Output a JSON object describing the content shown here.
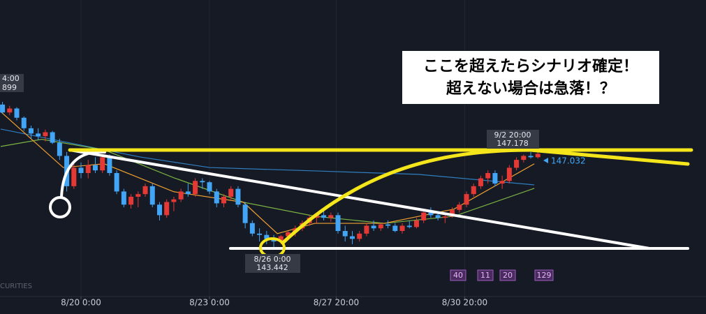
{
  "chart_data": {
    "type": "candlestick",
    "x": [
      -44,
      -40,
      -36,
      -32,
      -28,
      -24,
      -20,
      -16,
      -12,
      -8,
      -4,
      0,
      4,
      8,
      12,
      16,
      20,
      24,
      28,
      32,
      36,
      40,
      44,
      48,
      52,
      56,
      60,
      64,
      68,
      72,
      76,
      80,
      84,
      88,
      92,
      96,
      100,
      104,
      108,
      112,
      116,
      120,
      124,
      128,
      132,
      136,
      140,
      144,
      148,
      152,
      156,
      160,
      164,
      168,
      172,
      176,
      180,
      184,
      188,
      192,
      196,
      200,
      204,
      208,
      212,
      216,
      220,
      224,
      228,
      232,
      236,
      240,
      244,
      248,
      252,
      256
    ],
    "open": [
      148.9,
      148.6,
      148.75,
      148.4,
      148.0,
      147.8,
      147.7,
      147.85,
      147.45,
      146.95,
      145.8,
      146.5,
      146.3,
      146.6,
      146.4,
      146.9,
      146.3,
      145.6,
      145.1,
      145.4,
      145.5,
      145.8,
      145.1,
      144.7,
      145.2,
      145.3,
      145.6,
      145.5,
      146.0,
      145.95,
      145.6,
      145.15,
      145.4,
      145.7,
      145.1,
      144.4,
      144.0,
      143.95,
      143.8,
      143.7,
      143.9,
      144.05,
      144.2,
      144.4,
      144.6,
      144.7,
      144.6,
      144.7,
      144.1,
      143.9,
      143.8,
      144.0,
      144.3,
      144.2,
      144.35,
      144.3,
      144.1,
      144.3,
      144.25,
      144.5,
      144.8,
      144.7,
      144.6,
      144.65,
      144.9,
      145.1,
      145.5,
      145.8,
      146.1,
      146.3,
      145.9,
      146.0,
      146.5,
      146.8,
      146.95,
      146.9
    ],
    "high": [
      149.0,
      148.85,
      148.8,
      148.45,
      148.1,
      148.0,
      147.95,
      147.9,
      147.6,
      147.1,
      146.7,
      146.7,
      146.8,
      146.9,
      147.0,
      147.0,
      146.4,
      145.7,
      145.5,
      145.6,
      145.9,
      145.9,
      145.2,
      145.3,
      145.4,
      145.7,
      145.9,
      146.1,
      146.1,
      146.0,
      145.7,
      145.5,
      145.8,
      145.8,
      145.2,
      144.5,
      144.2,
      144.1,
      143.95,
      143.95,
      144.1,
      144.3,
      144.5,
      144.7,
      144.8,
      144.85,
      144.8,
      144.8,
      144.3,
      144.1,
      144.1,
      144.4,
      144.5,
      144.4,
      144.5,
      144.4,
      144.4,
      144.5,
      144.6,
      144.9,
      145.0,
      144.85,
      144.75,
      145.0,
      145.2,
      145.6,
      145.9,
      146.2,
      146.4,
      146.4,
      146.2,
      146.6,
      146.9,
      147.0,
      147.1,
      147.18
    ],
    "low": [
      148.55,
      148.5,
      148.3,
      147.9,
      147.6,
      147.55,
      147.5,
      147.4,
      146.8,
      145.6,
      145.7,
      146.1,
      146.1,
      146.3,
      146.3,
      146.2,
      145.5,
      145.0,
      144.95,
      145.0,
      145.4,
      145.0,
      144.5,
      144.6,
      144.85,
      145.2,
      145.4,
      145.4,
      145.7,
      145.5,
      145.0,
      145.0,
      145.3,
      145.0,
      144.2,
      143.9,
      143.7,
      143.6,
      143.44,
      143.6,
      143.8,
      143.9,
      144.1,
      144.3,
      144.4,
      144.5,
      144.45,
      144.0,
      143.7,
      143.6,
      143.7,
      143.9,
      144.1,
      144.1,
      144.2,
      144.05,
      144.0,
      144.2,
      144.2,
      144.4,
      144.6,
      144.5,
      144.4,
      144.6,
      144.8,
      145.0,
      145.4,
      145.7,
      145.9,
      145.8,
      145.7,
      145.9,
      146.4,
      146.7,
      146.85,
      146.85
    ],
    "close": [
      148.6,
      148.75,
      148.4,
      148.0,
      147.8,
      147.7,
      147.85,
      147.45,
      146.95,
      145.8,
      146.5,
      146.3,
      146.6,
      146.4,
      146.9,
      146.3,
      145.6,
      145.1,
      145.4,
      145.5,
      145.8,
      145.1,
      144.7,
      145.2,
      145.3,
      145.6,
      145.5,
      146.0,
      145.95,
      145.6,
      145.15,
      145.4,
      145.7,
      145.1,
      144.4,
      144.0,
      143.95,
      143.8,
      143.7,
      143.9,
      144.05,
      144.2,
      144.4,
      144.6,
      144.7,
      144.6,
      144.7,
      144.1,
      143.9,
      143.8,
      144.0,
      144.3,
      144.2,
      144.35,
      144.3,
      144.1,
      144.3,
      144.25,
      144.5,
      144.8,
      144.7,
      144.6,
      144.65,
      144.9,
      145.1,
      145.5,
      145.8,
      146.1,
      146.3,
      145.9,
      146.0,
      146.5,
      146.8,
      146.95,
      146.9,
      147.03
    ],
    "up_color": "#e53935",
    "down_color": "#42a5f5",
    "series": [
      {
        "color": "#2f7fc1",
        "x": [
          -45,
          -6,
          33,
          72,
          131,
          189,
          254
        ],
        "values": [
          147.97,
          147.44,
          146.91,
          146.51,
          146.38,
          146.25,
          145.85
        ]
      },
      {
        "color": "#7cb342",
        "x": [
          -45,
          -22,
          13,
          52,
          91,
          131,
          170,
          209,
          254
        ],
        "values": [
          147.31,
          147.58,
          147.18,
          146.12,
          145.19,
          144.66,
          144.39,
          144.66,
          145.72
        ]
      },
      {
        "color": "#f0a030",
        "x": [
          -45,
          -10,
          13,
          52,
          91,
          110,
          131,
          170,
          209,
          254
        ],
        "values": [
          148.63,
          146.51,
          146.65,
          145.59,
          145.19,
          144.0,
          144.39,
          144.39,
          144.93,
          146.65
        ]
      }
    ],
    "xlim": [
      -45.4,
      350.2
    ],
    "ylim": [
      141.61,
      152.87
    ],
    "xticks": [
      {
        "value": 0,
        "label": "8/20 0:00"
      },
      {
        "value": 72,
        "label": "8/23 0:00"
      },
      {
        "value": 143,
        "label": "8/27 20:00"
      },
      {
        "value": 215,
        "label": "8/30 20:00"
      }
    ],
    "grid": true,
    "crosshair_labels": [
      {
        "time": "9/2 20:00",
        "price": 147.178
      },
      {
        "time": "8/26 0:00",
        "price": 143.442
      }
    ],
    "last_price": 147.032,
    "left_labels": [
      "4:00",
      "899"
    ],
    "watermark": "CURITIES",
    "indicator_badges": [
      40,
      11,
      20,
      129
    ],
    "note_lines": [
      "ここを超えたらシナリオ確定！",
      "超えない場合は急落！？"
    ]
  }
}
